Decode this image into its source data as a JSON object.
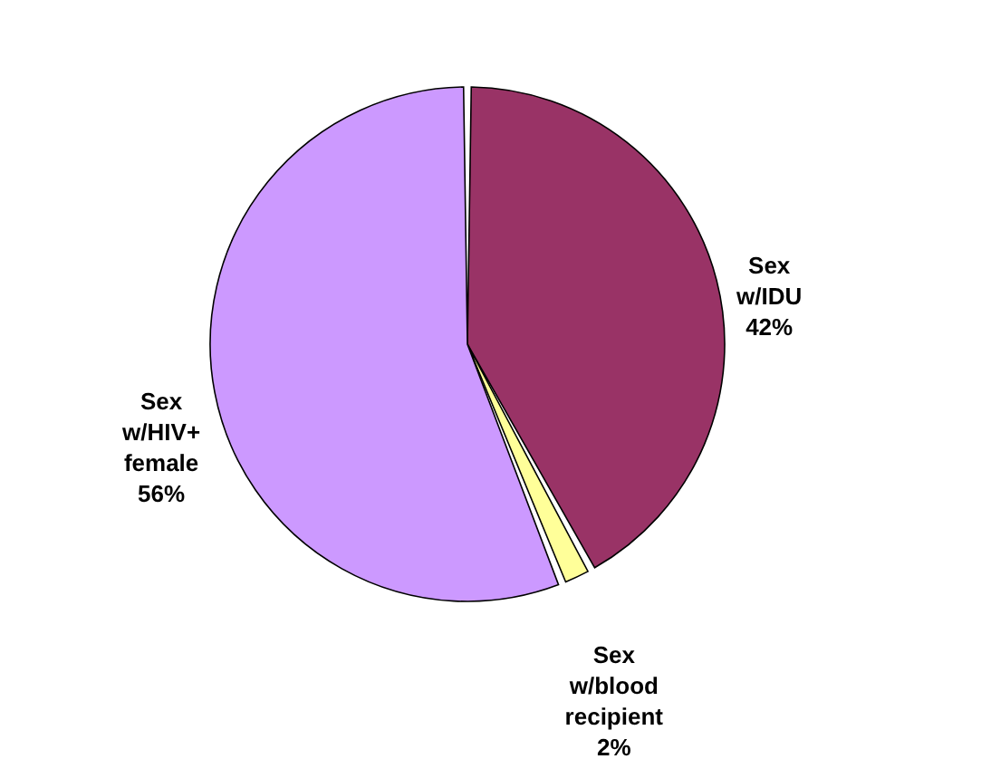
{
  "chart_data": {
    "type": "pie",
    "categories": [
      "Sex w/IDU",
      "Sex w/blood recipient",
      "Sex w/HIV+ female"
    ],
    "values": [
      42,
      2,
      56
    ],
    "colors": [
      "#993366",
      "#ffff99",
      "#cc99ff"
    ],
    "value_labels": [
      "42%",
      "2%",
      "56%"
    ]
  }
}
